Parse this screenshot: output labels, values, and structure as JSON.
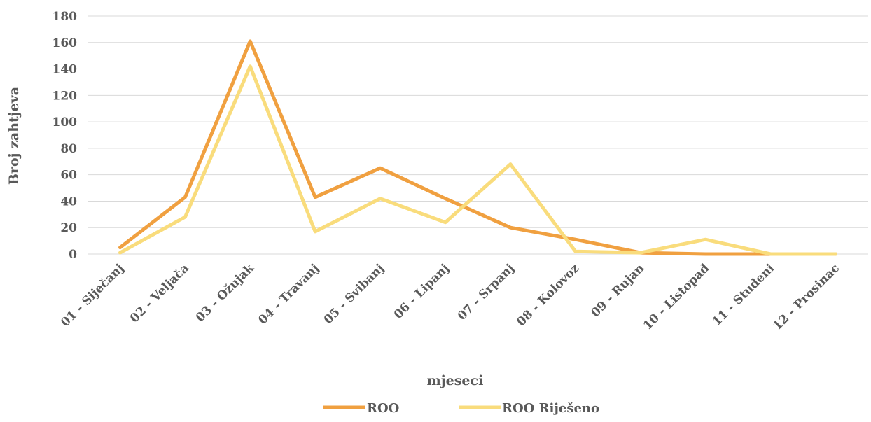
{
  "chart_data": {
    "type": "line",
    "categories": [
      "01 - Siječanj",
      "02 - Veljača",
      "03 - Ožujak",
      "04 - Travanj",
      "05 - Svibanj",
      "06 - Lipanj",
      "07 - Srpanj",
      "08 - Kolovoz",
      "09 - Rujan",
      "10 - Listopad",
      "11 - Studeni",
      "12 - Prosinac"
    ],
    "series": [
      {
        "name": "ROO",
        "color": "#F0A040",
        "values": [
          5,
          43,
          161,
          43,
          65,
          42,
          20,
          11,
          1,
          0,
          0,
          0
        ]
      },
      {
        "name": "ROO Riješeno",
        "color": "#F9DC7C",
        "values": [
          1,
          28,
          142,
          17,
          42,
          24,
          68,
          2,
          1,
          11,
          0,
          0
        ]
      }
    ],
    "xlabel": "mjeseci",
    "ylabel": "Broj zahtjeva",
    "ylim": [
      0,
      180
    ],
    "yticks": [
      0,
      20,
      40,
      60,
      80,
      100,
      120,
      140,
      160,
      180
    ],
    "grid": true,
    "legend_position": "bottom"
  }
}
